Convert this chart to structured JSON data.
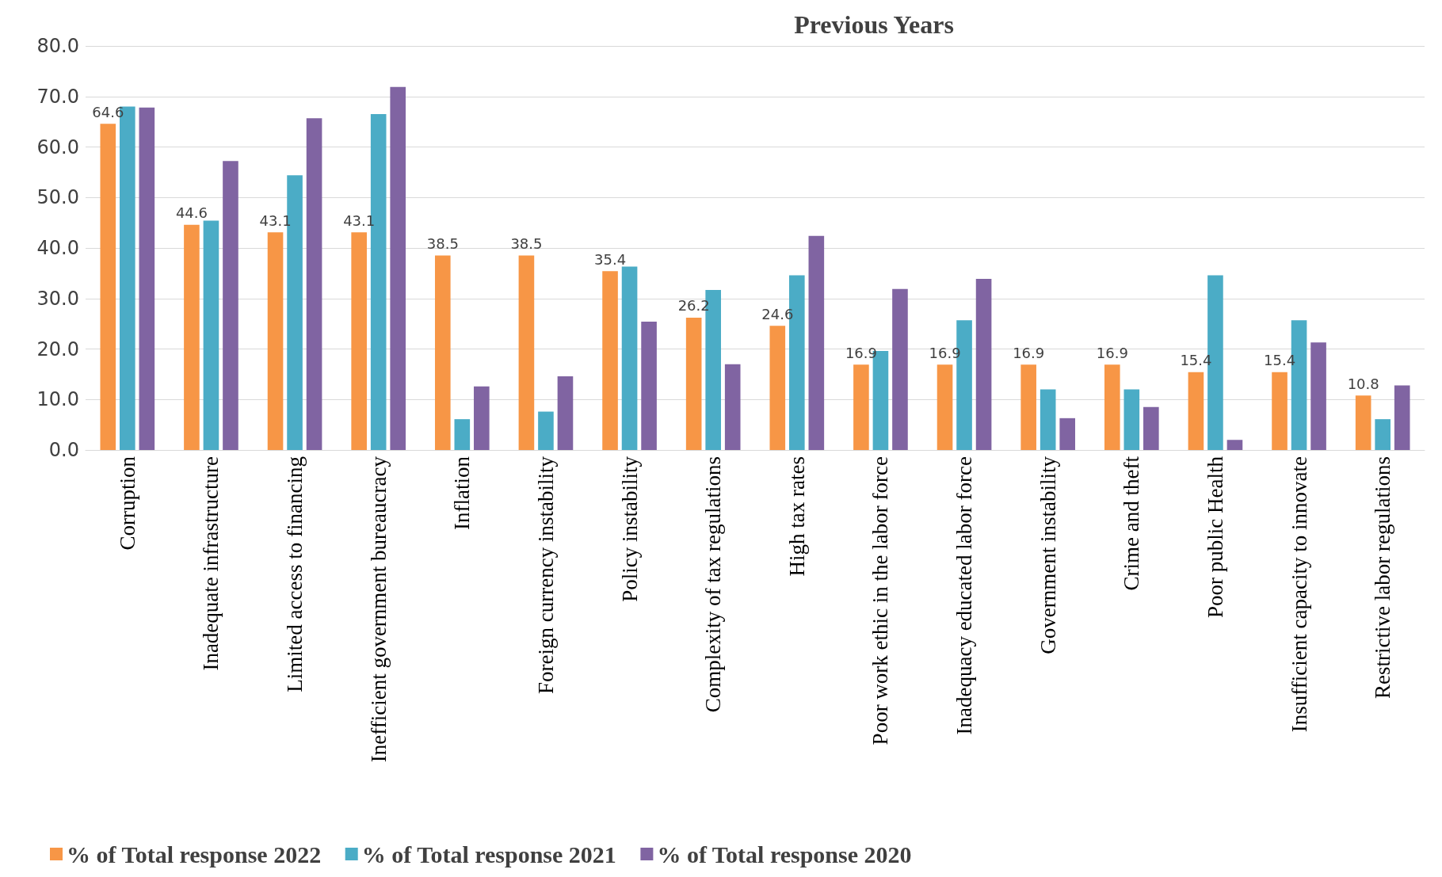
{
  "chart_data": {
    "type": "bar",
    "title": "Previous Years",
    "categories": [
      "Corruption",
      "Inadequate infrastructure",
      "Limited access to financing",
      "Inefficient government bureaucracy",
      "Inflation",
      "Foreign currency instability",
      "Policy instability",
      "Complexity of tax regulations",
      "High tax rates",
      "Poor work ethic in the labor force",
      "Inadequacy educated labor force",
      "Government instability",
      "Crime and theft",
      "Poor public Health",
      "Insufficient capacity to innovate",
      "Restrictive labor regulations"
    ],
    "series": [
      {
        "name": "% of Total response 2022",
        "color": "#f79646",
        "values": [
          64.6,
          44.6,
          43.1,
          43.1,
          38.5,
          38.5,
          35.4,
          26.2,
          24.6,
          16.9,
          16.9,
          16.9,
          16.9,
          15.4,
          15.4,
          10.8
        ],
        "value_labels": [
          "64.6",
          "44.6",
          "43.1",
          "43.1",
          "38.5",
          "38.5",
          "35.4",
          "26.2",
          "24.6",
          "16.9",
          "16.9",
          "16.9",
          "16.9",
          "15.4",
          "15.4",
          "10.8"
        ]
      },
      {
        "name": "% of Total response 2021",
        "color": "#4bacc6",
        "values": [
          68.0,
          45.4,
          54.4,
          66.5,
          6.1,
          7.6,
          36.3,
          31.7,
          34.6,
          19.6,
          25.7,
          12.0,
          12.0,
          34.6,
          25.7,
          6.1
        ]
      },
      {
        "name": "% of Total response 2020",
        "color": "#8064a2",
        "values": [
          67.8,
          57.2,
          65.7,
          71.9,
          12.6,
          14.6,
          25.4,
          17.0,
          42.4,
          31.9,
          33.9,
          6.3,
          8.5,
          2.0,
          21.3,
          12.8
        ]
      }
    ],
    "ylim": [
      0,
      80
    ],
    "yticks": [
      "0.0",
      "10.0",
      "20.0",
      "30.0",
      "40.0",
      "50.0",
      "60.0",
      "70.0",
      "80.0"
    ],
    "grid": "y",
    "legend": "bottom left"
  }
}
